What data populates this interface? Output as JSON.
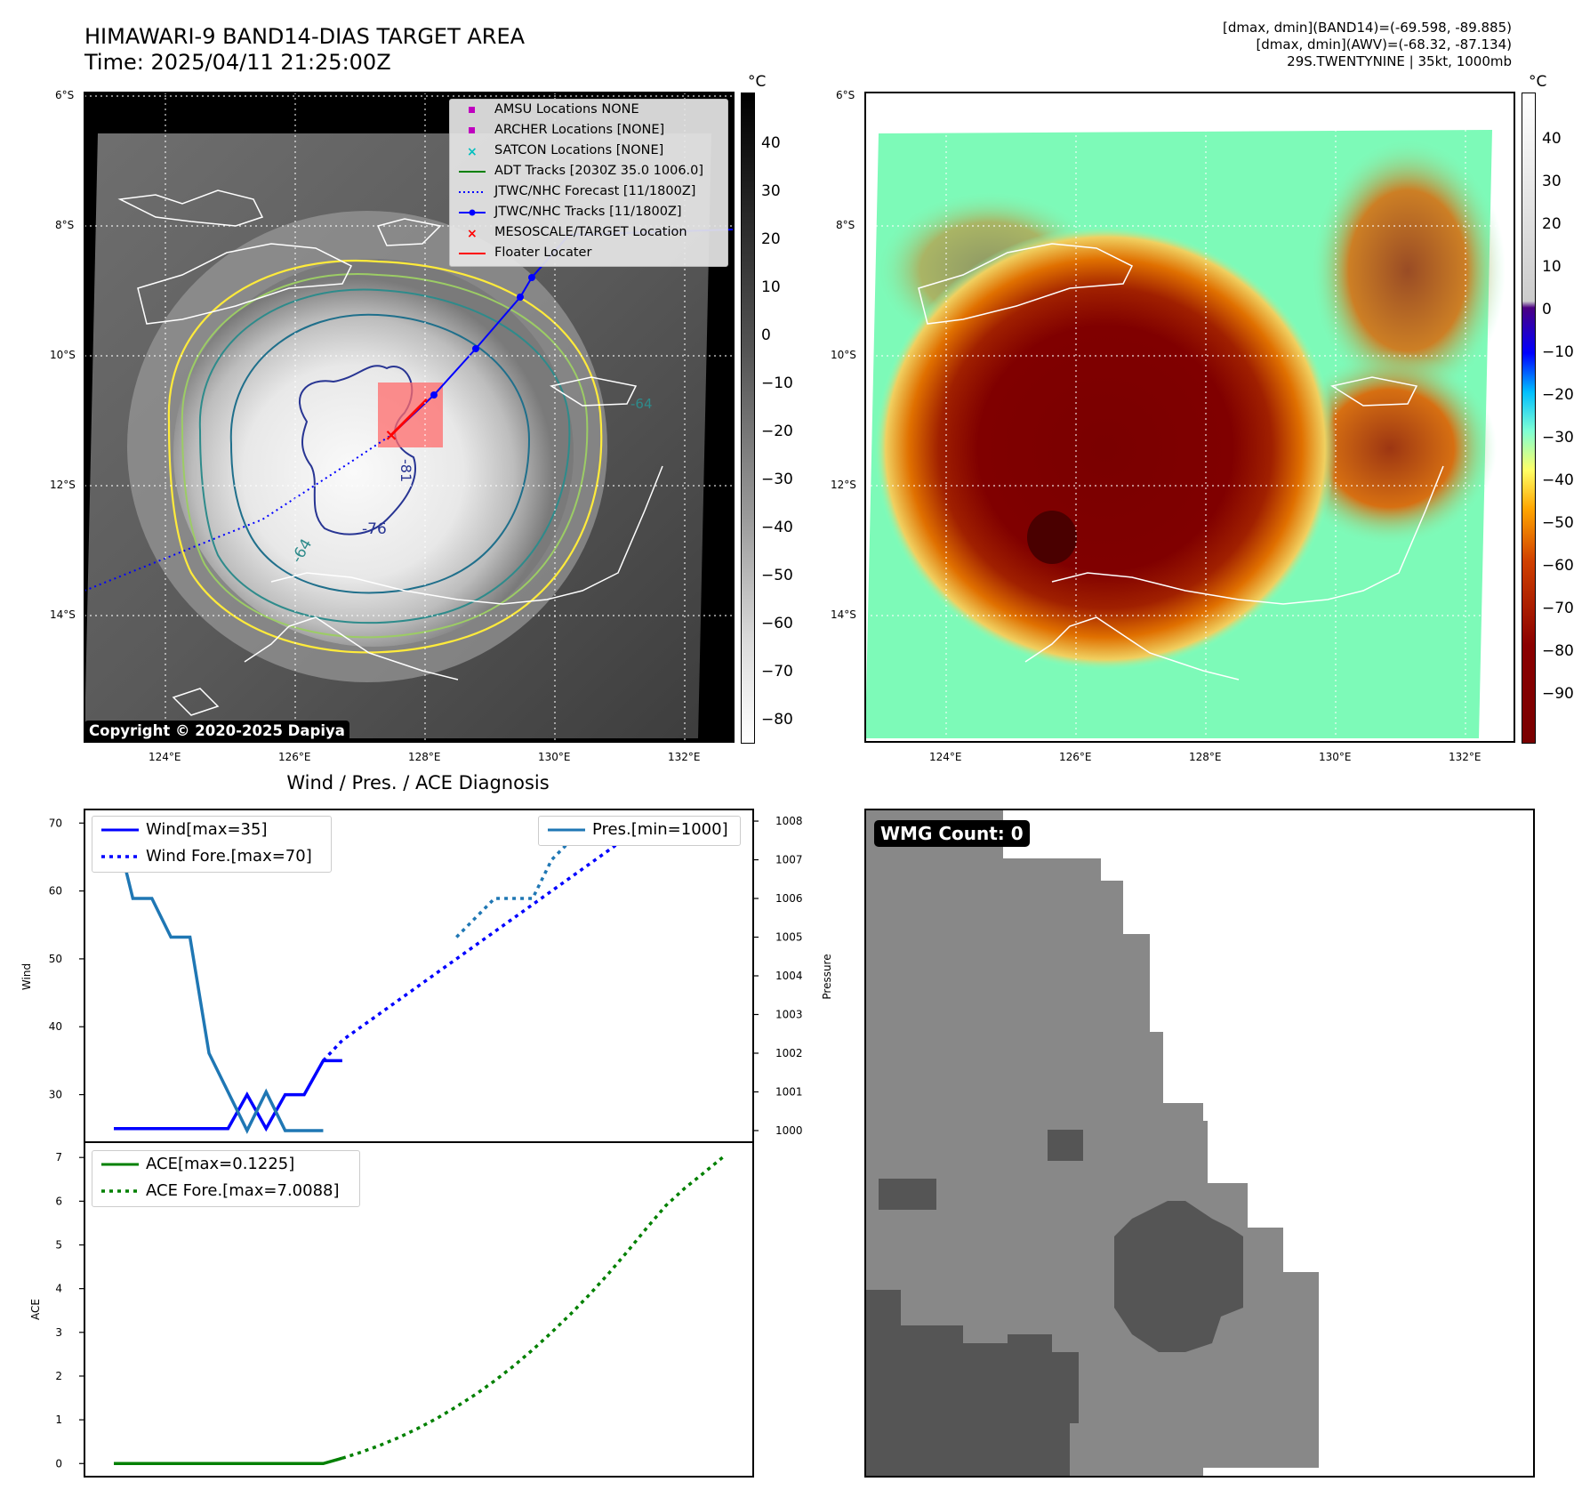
{
  "header": {
    "title_line1": "HIMAWARI-9 BAND14-DIAS TARGET AREA",
    "title_line2": "Time: 2025/04/11 21:25:00Z",
    "stat_line1": "[dmax, dmin](BAND14)=(-69.598, -89.885)",
    "stat_line2": "[dmax, dmin](AWV)=(-68.32, -87.134)",
    "stat_line3": "29S.TWENTYNINE | 35kt, 1000mb"
  },
  "maps": {
    "lat_labels": [
      "6°S",
      "8°S",
      "10°S",
      "12°S",
      "14°S"
    ],
    "lon_labels": [
      "124°E",
      "126°E",
      "128°E",
      "130°E",
      "132°E"
    ],
    "copyright": "Copyright © 2020-2025 Dapiya",
    "contour_labels": [
      "-64",
      "-76",
      "-81",
      "-64"
    ],
    "legend": [
      {
        "label": "AMSU Locations NONE",
        "color": "#bf00bf",
        "symbol": "square-marker"
      },
      {
        "label": "ARCHER Locations [NONE]",
        "color": "#bf00bf",
        "symbol": "square-marker"
      },
      {
        "label": "SATCON Locations [NONE]",
        "color": "#00bfbf",
        "symbol": "x-marker"
      },
      {
        "label": "ADT Tracks [2030Z 35.0 1006.0]",
        "color": "#008000",
        "symbol": "solid-line"
      },
      {
        "label": "JTWC/NHC Forecast [11/1800Z]",
        "color": "#0000ff",
        "symbol": "dotted-line"
      },
      {
        "label": "JTWC/NHC Tracks [11/1800Z]",
        "color": "#0000ff",
        "symbol": "line-dot"
      },
      {
        "label": "MESOSCALE/TARGET Location",
        "color": "#ff0000",
        "symbol": "x-marker"
      },
      {
        "label": "Floater Locater",
        "color": "#ff0000",
        "symbol": "solid-line"
      }
    ]
  },
  "colorbar_left": {
    "unit": "°C",
    "ticks": [
      "40",
      "30",
      "20",
      "10",
      "0",
      "−10",
      "−20",
      "−30",
      "−40",
      "−50",
      "−60",
      "−70",
      "−80"
    ]
  },
  "colorbar_right": {
    "unit": "°C",
    "ticks": [
      "40",
      "30",
      "20",
      "10",
      "0",
      "−10",
      "−20",
      "−30",
      "−40",
      "−50",
      "−60",
      "−70",
      "−80",
      "−90"
    ]
  },
  "diagnosis": {
    "title": "Wind / Pres. / ACE Diagnosis",
    "wind_ylabel": "Wind",
    "pres_ylabel": "Pressure",
    "ace_ylabel": "ACE",
    "wind_legend": [
      "Wind[max=35]",
      "Wind Fore.[max=70]"
    ],
    "pres_legend": [
      "Pres.[min=1000]"
    ],
    "ace_legend": [
      "ACE[max=0.1225]",
      "ACE Fore.[max=7.0088]"
    ],
    "colors": {
      "wind": "#0000ff",
      "pres": "#1f77b4",
      "ace": "#008000"
    }
  },
  "wmg": {
    "label": "WMG Count: 0"
  },
  "chart_data": [
    {
      "type": "line",
      "name": "wind",
      "ylim": [
        23,
        72
      ],
      "yticks": [
        30,
        40,
        50,
        60,
        70
      ],
      "series": [
        {
          "name": "Wind[max=35]",
          "style": "solid",
          "x": [
            0,
            1,
            2,
            3,
            4,
            5,
            6,
            7,
            8,
            9,
            10,
            11,
            12
          ],
          "values": [
            25,
            25,
            25,
            25,
            25,
            25,
            25,
            30,
            25,
            30,
            30,
            35,
            35
          ]
        },
        {
          "name": "Wind Fore.[max=70]",
          "style": "dotted",
          "x": [
            11,
            12,
            13,
            14,
            15,
            16,
            17,
            18,
            19,
            20,
            21,
            22,
            23,
            24,
            25,
            26,
            27,
            28,
            29,
            30,
            31,
            32
          ],
          "values": [
            35,
            38,
            40,
            42,
            44,
            46,
            48,
            50,
            52,
            54,
            56,
            58,
            60,
            62,
            64,
            66,
            68,
            70,
            70,
            70,
            70,
            70
          ]
        }
      ]
    },
    {
      "type": "line",
      "name": "pressure",
      "ylim": [
        999.7,
        1008.3
      ],
      "yticks": [
        1000,
        1001,
        1002,
        1003,
        1004,
        1005,
        1006,
        1007,
        1008
      ],
      "series": [
        {
          "name": "Pres.[min=1000]",
          "style": "solid",
          "x": [
            0,
            1,
            2,
            3,
            4,
            5,
            6,
            7,
            8,
            9,
            10,
            11
          ],
          "values": [
            1008,
            1006,
            1006,
            1005,
            1005,
            1002,
            1001,
            1000,
            1001,
            1000,
            1000,
            1000
          ]
        },
        {
          "name": "",
          "style": "dotted",
          "x": [
            18,
            19,
            20,
            21,
            22,
            23,
            24,
            25,
            26,
            27,
            28,
            29,
            30,
            31,
            32
          ],
          "values": [
            1005,
            1005.5,
            1006,
            1006,
            1006,
            1007,
            1007.5,
            1008,
            1008,
            1008,
            1008,
            1008,
            1008,
            1008,
            1007.5
          ]
        }
      ]
    },
    {
      "type": "line",
      "name": "ace",
      "ylim": [
        -0.3,
        7.35
      ],
      "yticks": [
        0,
        1,
        2,
        3,
        4,
        5,
        6,
        7
      ],
      "series": [
        {
          "name": "ACE[max=0.1225]",
          "style": "solid",
          "x": [
            0,
            1,
            2,
            3,
            4,
            5,
            6,
            7,
            8,
            9,
            10,
            11,
            12
          ],
          "values": [
            0,
            0,
            0,
            0,
            0,
            0,
            0,
            0,
            0,
            0,
            0,
            0,
            0.1225
          ]
        },
        {
          "name": "ACE Fore.[max=7.0088]",
          "style": "dotted",
          "x": [
            12,
            13,
            14,
            15,
            16,
            17,
            18,
            19,
            20,
            21,
            22,
            23,
            24,
            25,
            26,
            27,
            28,
            29,
            30,
            31,
            32
          ],
          "values": [
            0.1225,
            0.26,
            0.42,
            0.6,
            0.81,
            1.04,
            1.3,
            1.58,
            1.89,
            2.23,
            2.6,
            3.0,
            3.42,
            3.87,
            4.35,
            4.86,
            5.39,
            5.9,
            6.3,
            6.65,
            7.0088
          ]
        }
      ]
    }
  ]
}
